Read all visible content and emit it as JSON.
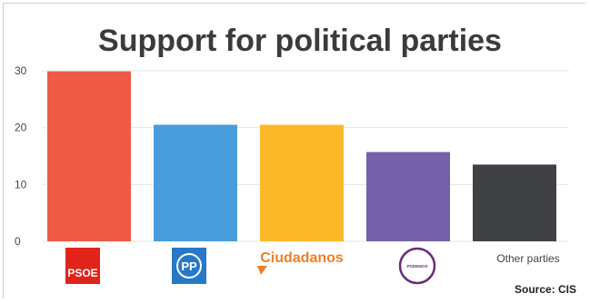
{
  "chart_data": {
    "type": "bar",
    "title": "Support for political parties",
    "categories": [
      "PSOE",
      "PP",
      "Ciudadanos",
      "Podemos",
      "Other parties"
    ],
    "values": [
      29.9,
      20.5,
      20.5,
      15.7,
      13.5
    ],
    "colors": [
      "#ef5a47",
      "#4a9ddc",
      "#fbb827",
      "#7561ab",
      "#3f4145"
    ],
    "ylim": [
      0,
      30
    ],
    "yticks": [
      0,
      10,
      20,
      30
    ],
    "ytick_labels": [
      "0",
      "10",
      "20",
      "30"
    ],
    "grid": true,
    "source": "Source: CIS",
    "category_labels": {
      "psoe_logo": "PSOE",
      "pp_logo": "PP",
      "ciudadanos_logo": "Ciudadanos",
      "podemos_logo": "PODEMOS",
      "other": "Other parties"
    },
    "logo_colors": {
      "psoe": "#e2231a",
      "pp": "#2878c8",
      "ciudadanos": "#f07e26",
      "podemos": "#6b2a7a"
    }
  }
}
